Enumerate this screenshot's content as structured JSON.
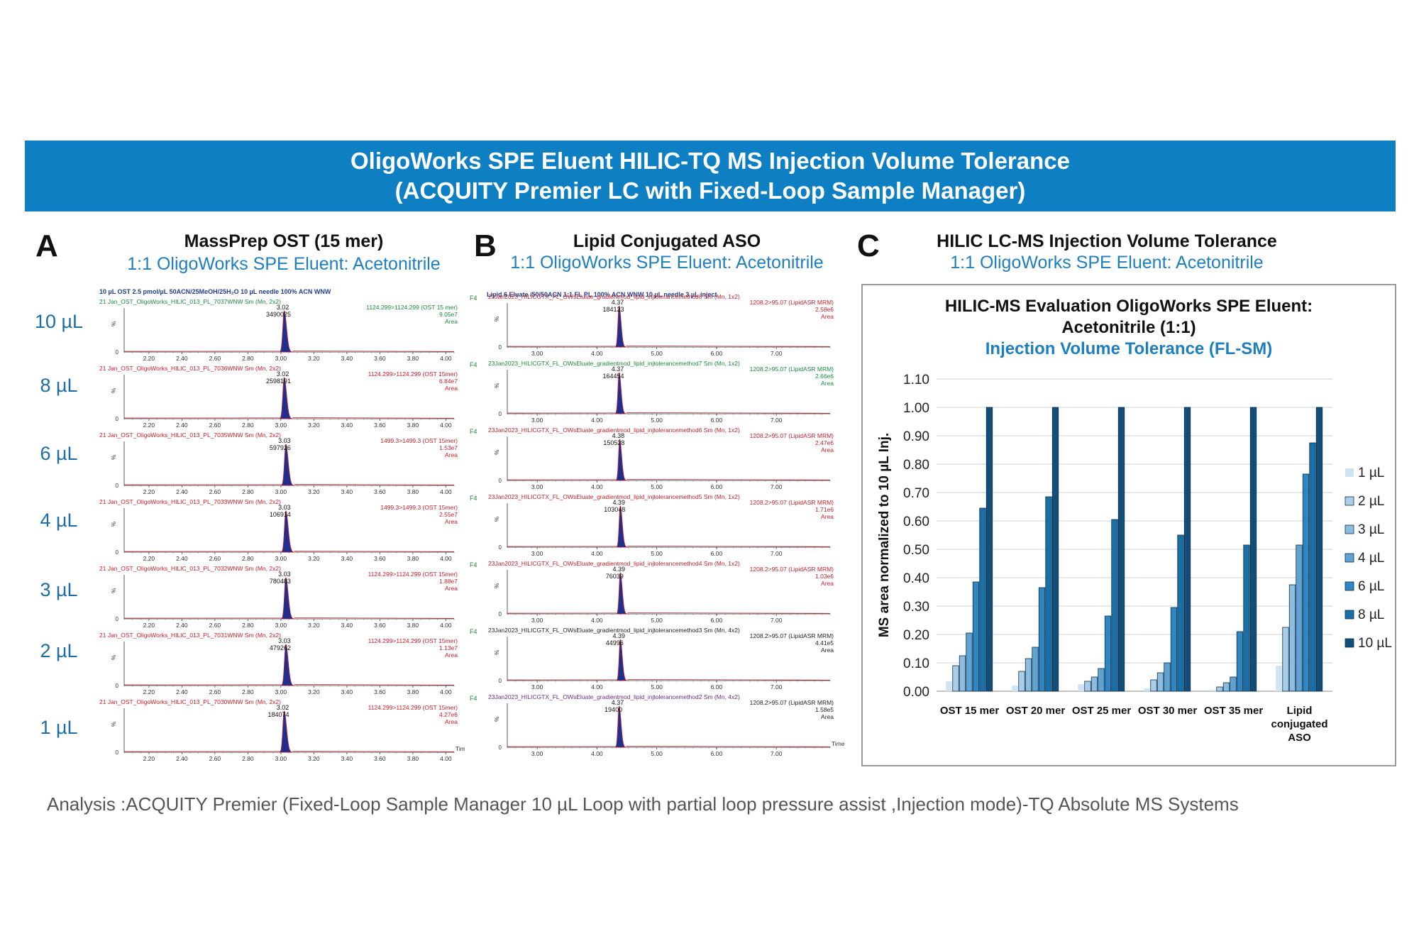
{
  "banner": {
    "line1": "OligoWorks SPE Eluent HILIC-TQ MS Injection Volume Tolerance",
    "line2": "(ACQUITY Premier LC with Fixed-Loop Sample Manager)"
  },
  "panels": {
    "a": {
      "letter": "A",
      "title": "MassPrep OST (15 mer)",
      "subtitle": "1:1 OligoWorks SPE Eluent: Acetonitrile",
      "conditions": "10 µL OST 2.5 pmol/µL 50ACN/25MeOH/25H₂O 10 µL needle 100% ACN WNW"
    },
    "b": {
      "letter": "B",
      "title": "Lipid Conjugated ASO",
      "subtitle": "1:1 OligoWorks SPE Eluent: Acetonitrile",
      "conditions": "Lipid 6 Eluate /50/50ACN 1:1 FL PL 100% ACN WNW 10 µL needle 3 µL inject"
    },
    "c": {
      "letter": "C",
      "title": "HILIC LC-MS Injection Volume Tolerance",
      "subtitle": "1:1 OligoWorks SPE Eluent: Acetonitrile"
    }
  },
  "volume_labels": [
    "10 µL",
    "8 µL",
    "6 µL",
    "4 µL",
    "3 µL",
    "2 µL",
    "1 µL"
  ],
  "chromatograms": {
    "a": {
      "x_ticks": [
        "2.20",
        "2.40",
        "2.60",
        "2.80",
        "3.00",
        "3.20",
        "3.40",
        "3.60",
        "3.80",
        "4.00"
      ],
      "x_range": [
        2.05,
        4.05
      ],
      "y_label": "%",
      "y_ticks": [
        "0"
      ],
      "time_label": "Time",
      "traces": [
        {
          "header": "21 Jan_OST_OligoWorks_HILIC_013_PL_7037WNW Sm (Mn, 2x2)",
          "header_color": "#1a8a3c",
          "rt": "3.02",
          "area": "3490025",
          "transition": "1124.299>1124.299 (OST 15 mer)",
          "intensity": "9.05e7",
          "area_label": "Area",
          "info_color": "#1a8a3c",
          "peak": 3.02
        },
        {
          "header": "21 Jan_OST_OligoWorks_HILIC_013_PL_7036WNW Sm (Mn, 2x2)",
          "header_color": "#c8202a",
          "rt": "3.02",
          "area": "2598191",
          "transition": "1124.299>1124.299 (OST 15mer)",
          "intensity": "6.84e7",
          "area_label": "Area",
          "info_color": "#c8202a",
          "peak": 3.02
        },
        {
          "header": "21 Jan_OST_OligoWorks_HILIC_013_PL_7035WNW Sm (Mn, 2x2)",
          "header_color": "#c8202a",
          "rt": "3.03",
          "area": "597926",
          "transition": "1499.3>1499.3 (OST 15mer)",
          "intensity": "1.53e7",
          "area_label": "Area",
          "info_color": "#c8202a",
          "peak": 3.03
        },
        {
          "header": "21 Jan_OST_OligoWorks_HILIC_013_PL_7033WNW Sm (Mn, 2x2)",
          "header_color": "#c8202a",
          "rt": "3.03",
          "area": "106914",
          "transition": "1499.3>1499.3 (OST 15mer)",
          "intensity": "2.55e7",
          "area_label": "Area",
          "info_color": "#c8202a",
          "peak": 3.03
        },
        {
          "header": "21 Jan_OST_OligoWorks_HILIC_013_PL_7032WNW Sm (Mn, 2x2)",
          "header_color": "#c8202a",
          "rt": "3.03",
          "area": "780483",
          "transition": "1124.299>1124.299 (OST 15mer)",
          "intensity": "1.88e7",
          "area_label": "Area",
          "info_color": "#c8202a",
          "peak": 3.03
        },
        {
          "header": "21 Jan_OST_OligoWorks_HILIC_013_PL_7031WNW Sm (Mn, 2x2)",
          "header_color": "#c8202a",
          "rt": "3.03",
          "area": "479262",
          "transition": "1124.299>1124.299 (OST 15mer)",
          "intensity": "1.13e7",
          "area_label": "Area",
          "info_color": "#c8202a",
          "peak": 3.03
        },
        {
          "header": "21 Jan_OST_OligoWorks_HILIC_013_PL_7030WNW Sm (Mn, 2x2)",
          "header_color": "#c8202a",
          "rt": "3.02",
          "area": "184074",
          "transition": "1124.299>1124.299 (OST 15mer)",
          "intensity": "4.27e6",
          "area_label": "Area",
          "info_color": "#c8202a",
          "peak": 3.02
        }
      ]
    },
    "b": {
      "x_ticks": [
        "3.00",
        "4.00",
        "5.00",
        "6.00",
        "7.00"
      ],
      "x_range": [
        2.5,
        7.9
      ],
      "y_label": "%",
      "y_ticks": [
        "0"
      ],
      "function_label": "F4",
      "time_label": "Time",
      "traces": [
        {
          "header": "23Jan2023_HILICGTX_FL_OWsEluate_gradientmod_lipid_injtolerancemethod8 Sm (Mn, 1x2)",
          "header_color": "#c8202a",
          "rt": "4.37",
          "area": "184123",
          "transition": "1208.2>95.07 (LipidASR MRM)",
          "intensity": "2.58e6",
          "area_label": "Area",
          "info_color": "#c8202a",
          "peak": 4.37
        },
        {
          "header": "23Jan2023_HILICGTX_FL_OWsEluate_gradientmod_lipid_injtolerancemethod7 Sm (Mn, 1x2)",
          "header_color": "#1a8a3c",
          "rt": "4.37",
          "area": "164454",
          "transition": "1208.2>95.07 (LipidASR MRM)",
          "intensity": "2.66e6",
          "area_label": "Area",
          "info_color": "#1a8a3c",
          "peak": 4.37
        },
        {
          "header": "23Jan2023_HILICGTX_FL_OWsEluate_gradientmod_lipid_injtolerancemethod6 Sm (Mn, 1x2)",
          "header_color": "#c8202a",
          "rt": "4.38",
          "area": "150528",
          "transition": "1208.2>95.07 (LipidASR MRM)",
          "intensity": "2.47e6",
          "area_label": "Area",
          "info_color": "#c8202a",
          "peak": 4.38
        },
        {
          "header": "23Jan2023_HILICGTX_FL_OWsEluate_gradientmod_lipid_injtolerancemethod5 Sm (Mn, 1x2)",
          "header_color": "#c8202a",
          "rt": "4.39",
          "area": "103048",
          "transition": "1208.2>95.07 (LipidASR MRM)",
          "intensity": "1.71e6",
          "area_label": "Area",
          "info_color": "#c8202a",
          "peak": 4.39
        },
        {
          "header": "23Jan2023_HILICGTX_FL_OWsEluate_gradientmod_lipid_injtolerancemethod4 Sm (Mn, 1x2)",
          "header_color": "#c8202a",
          "rt": "4.39",
          "area": "76039",
          "transition": "1208.2>95.07 (LipidASR MRM)",
          "intensity": "1.03e6",
          "area_label": "Area",
          "info_color": "#c8202a",
          "peak": 4.39
        },
        {
          "header": "23Jan2023_HILICGTX_FL_OWsEluate_gradientmod_lipid_injtolerancemethod3 Sm (Mn, 4x2)",
          "header_color": "#222222",
          "rt": "4.39",
          "area": "44996",
          "transition": "1208.2>95.07 (LipidASR MRM)",
          "intensity": "4.41e5",
          "area_label": "Area",
          "info_color": "#222222",
          "peak": 4.39
        },
        {
          "header": "23Jan2023_HILICGTX_FL_OWsEluate_gradientmod_lipid_injtolerancemethod2 Sm (Mn, 4x2)",
          "header_color": "#6a2a8c",
          "rt": "4.37",
          "area": "19400",
          "transition": "1208.2>95.07 (LipidASR MRM)",
          "intensity": "1.58e5",
          "area_label": "Area",
          "info_color": "#222222",
          "peak": 4.37
        }
      ]
    }
  },
  "chart": {
    "title_line1": "HILIC-MS Evaluation OligoWorks SPE Eluent:",
    "title_line2": "Acetonitrile (1:1)",
    "subtitle": "Injection Volume Tolerance (FL-SM)"
  },
  "chart_data": {
    "type": "bar",
    "ylabel": "MS area normalized to 10 µL Inj.",
    "ylim": [
      0,
      1.1
    ],
    "y_ticks": [
      "0.00",
      "0.10",
      "0.20",
      "0.30",
      "0.40",
      "0.50",
      "0.60",
      "0.70",
      "0.80",
      "0.90",
      "1.00",
      "1.10"
    ],
    "categories": [
      [
        "OST 15 mer"
      ],
      [
        "OST 20 mer"
      ],
      [
        "OST 25 mer"
      ],
      [
        "OST 30 mer"
      ],
      [
        "OST 35 mer"
      ],
      [
        "Lipid",
        "conjugated",
        "ASO"
      ]
    ],
    "series": [
      {
        "name": "1 µL",
        "color": "#cfe3f2",
        "values": [
          0.035,
          0.02,
          0.025,
          0.01,
          0.005,
          0.09
        ]
      },
      {
        "name": "2 µL",
        "color": "#aacde8",
        "values": [
          0.09,
          0.07,
          0.035,
          0.04,
          0.015,
          0.225
        ]
      },
      {
        "name": "3 µL",
        "color": "#8cbcdf",
        "values": [
          0.125,
          0.115,
          0.05,
          0.065,
          0.03,
          0.375
        ]
      },
      {
        "name": "4 µL",
        "color": "#5fa3d3",
        "values": [
          0.205,
          0.155,
          0.08,
          0.1,
          0.05,
          0.515
        ]
      },
      {
        "name": "6 µL",
        "color": "#2f86c0",
        "values": [
          0.385,
          0.365,
          0.265,
          0.295,
          0.21,
          0.765
        ]
      },
      {
        "name": "8 µL",
        "color": "#1a6fa7",
        "values": [
          0.645,
          0.685,
          0.605,
          0.55,
          0.515,
          0.875
        ]
      },
      {
        "name": "10 µL",
        "color": "#124e78",
        "values": [
          1.0,
          1.0,
          1.0,
          1.0,
          1.0,
          1.0
        ]
      }
    ],
    "grid": true,
    "legend": "right"
  },
  "footer": "Analysis :ACQUITY Premier (Fixed-Loop Sample Manager 10 µL Loop with partial loop pressure assist ,Injection mode)-TQ Absolute MS Systems"
}
